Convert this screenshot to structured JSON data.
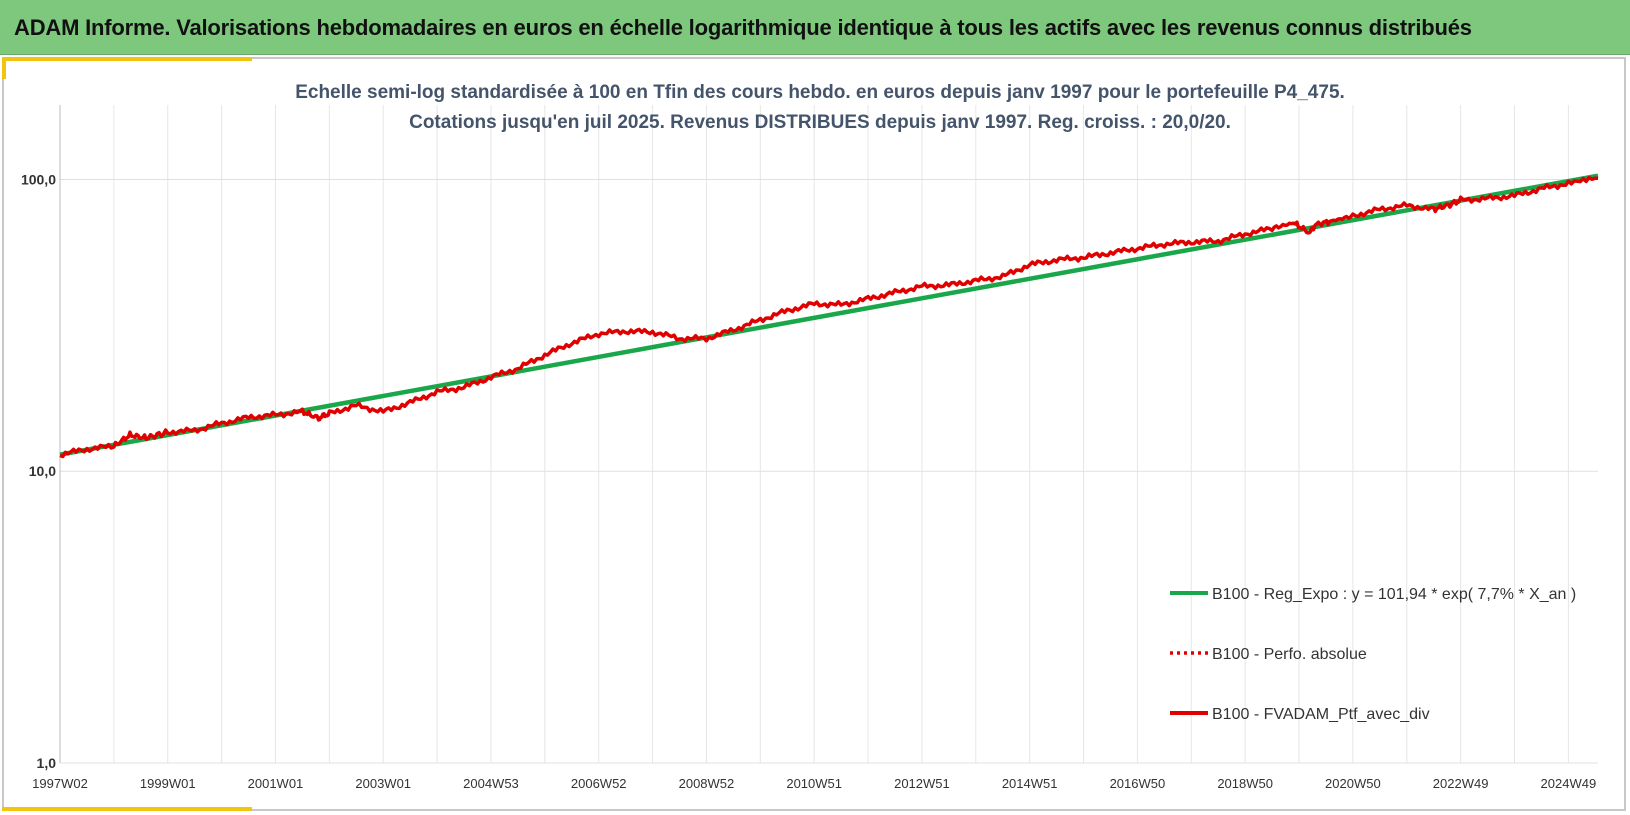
{
  "header": {
    "title": "ADAM Informe. Valorisations hebdomadaires en euros en échelle logarithmique identique à tous les actifs avec les revenus connus distribués"
  },
  "chart_data": {
    "type": "line",
    "title_line1": "Echelle semi-log standardisée à 100 en Tfin des cours hebdo.  en euros depuis janv 1997 pour le portefeuille P4_475.",
    "title_line2": "Cotations jusqu'en juil 2025. Revenus DISTRIBUES depuis janv 1997. Reg. croiss. : 20,0/20.",
    "y_scale": "log",
    "ylim": [
      1,
      180
    ],
    "y_ticks": [
      {
        "value": 100,
        "label": "100,0"
      },
      {
        "value": 10,
        "label": "10,0"
      },
      {
        "value": 1,
        "label": "1,0"
      }
    ],
    "xlim": [
      1997.0,
      2025.55
    ],
    "x_ticks": [
      {
        "value": 1997.0,
        "label": "1997W02"
      },
      {
        "value": 1999.0,
        "label": "1999W01"
      },
      {
        "value": 2001.0,
        "label": "2001W01"
      },
      {
        "value": 2003.0,
        "label": "2003W01"
      },
      {
        "value": 2005.0,
        "label": "2004W53"
      },
      {
        "value": 2007.0,
        "label": "2006W52"
      },
      {
        "value": 2009.0,
        "label": "2008W52"
      },
      {
        "value": 2011.0,
        "label": "2010W51"
      },
      {
        "value": 2013.0,
        "label": "2012W51"
      },
      {
        "value": 2015.0,
        "label": "2014W51"
      },
      {
        "value": 2017.0,
        "label": "2016W50"
      },
      {
        "value": 2019.0,
        "label": "2018W50"
      },
      {
        "value": 2021.0,
        "label": "2020W50"
      },
      {
        "value": 2023.0,
        "label": "2022W49"
      },
      {
        "value": 2025.0,
        "label": "2024W49"
      }
    ],
    "grid": true,
    "legend_position": "bottom-right",
    "series": [
      {
        "name": "B100 - Reg_Expo : y = 101,94 * exp( 7,7% *  X_an )",
        "color": "#1aa74a",
        "style": "solid",
        "x": [
          1997.0,
          2025.55
        ],
        "y": [
          11.4,
          103
        ]
      },
      {
        "name": "B100 - Perfo. absolue",
        "color": "#e00000",
        "style": "dotted",
        "x": [],
        "y": []
      },
      {
        "name": "B100 - FVADAM_Ptf_avec_div",
        "color": "#e00000",
        "style": "solid",
        "x": [
          1997.0,
          1997.5,
          1998.0,
          1998.3,
          1998.6,
          1999.0,
          1999.5,
          2000.0,
          2000.5,
          2001.0,
          2001.5,
          2001.8,
          2002.0,
          2002.5,
          2003.0,
          2003.5,
          2004.0,
          2004.5,
          2005.0,
          2005.5,
          2006.0,
          2006.5,
          2007.0,
          2007.5,
          2008.0,
          2008.5,
          2009.0,
          2009.5,
          2010.0,
          2010.5,
          2011.0,
          2011.5,
          2012.0,
          2012.5,
          2013.0,
          2013.5,
          2014.0,
          2014.5,
          2015.0,
          2015.5,
          2016.0,
          2016.5,
          2017.0,
          2017.5,
          2018.0,
          2018.5,
          2019.0,
          2019.5,
          2019.9,
          2020.2,
          2020.3,
          2020.6,
          2021.0,
          2021.5,
          2022.0,
          2022.5,
          2022.8,
          2023.0,
          2023.5,
          2024.0,
          2024.5,
          2025.0,
          2025.55
        ],
        "y": [
          11.4,
          11.9,
          12.2,
          13.3,
          13.0,
          13.6,
          13.8,
          14.6,
          15.3,
          15.6,
          16.0,
          15.2,
          15.8,
          16.8,
          16.0,
          17.2,
          18.7,
          19.4,
          21.0,
          22.5,
          25.0,
          27.5,
          29.6,
          30.2,
          30.0,
          28.5,
          28.5,
          30.5,
          33.0,
          35.5,
          37.5,
          37.2,
          39.0,
          41.0,
          43.0,
          43.5,
          45.0,
          46.5,
          51.0,
          53.0,
          54.0,
          56.0,
          58.0,
          60.0,
          61.0,
          61.5,
          65.0,
          68.0,
          71.0,
          65.5,
          70.0,
          72.0,
          75.0,
          79.0,
          81.5,
          79.0,
          82.0,
          85.0,
          86.0,
          88.0,
          93.0,
          97.0,
          101.0
        ]
      }
    ]
  }
}
